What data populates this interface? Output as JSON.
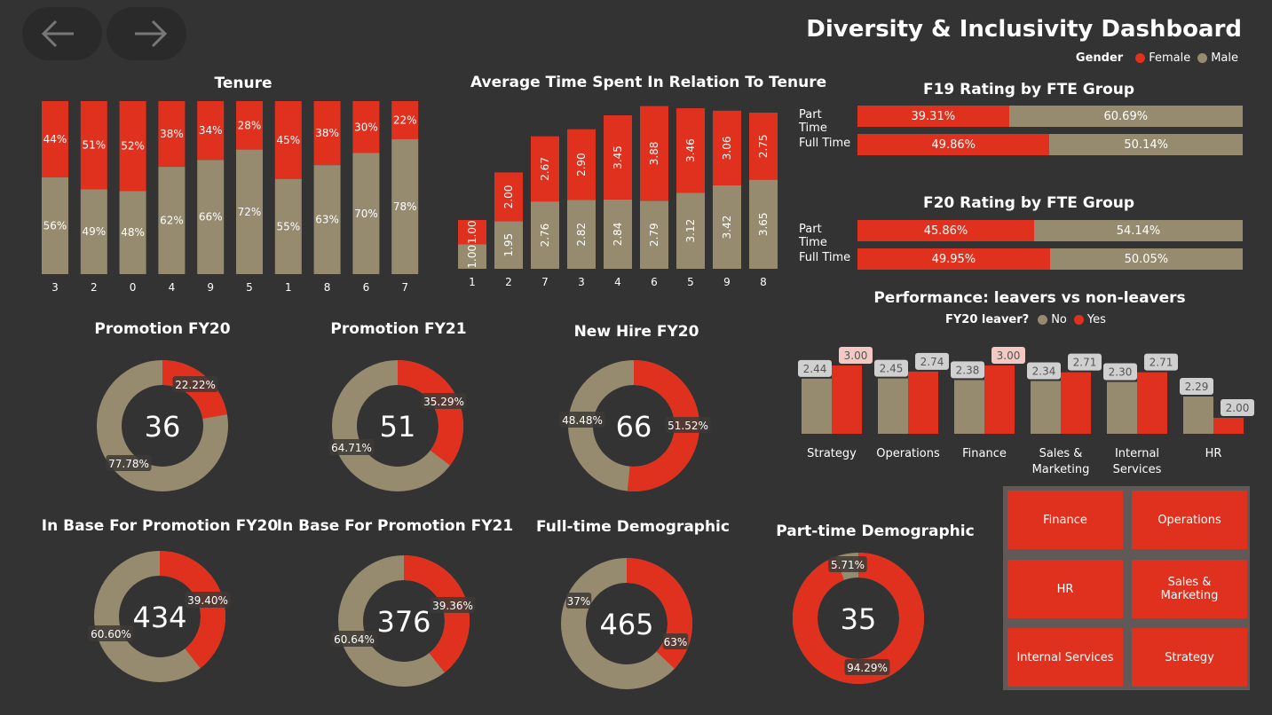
{
  "colors": {
    "female": "#e0301e",
    "male": "#968b6e",
    "bg": "#333333"
  },
  "nav": {
    "back_icon": "arrow-left-icon",
    "forward_icon": "arrow-right-icon"
  },
  "header": {
    "title": "Diversity & Inclusivity Dashboard"
  },
  "gender_legend": {
    "label": "Gender",
    "female": "Female",
    "male": "Male"
  },
  "leaver_legend": {
    "label": "FY20 leaver?",
    "no": "No",
    "yes": "Yes"
  },
  "chart_data": [
    {
      "id": "tenure",
      "type": "bar",
      "stacked": true,
      "title": "Tenure",
      "categories": [
        "3",
        "2",
        "0",
        "4",
        "9",
        "5",
        "1",
        "8",
        "6",
        "7"
      ],
      "series": [
        {
          "name": "Male",
          "values": [
            56,
            49,
            48,
            62,
            66,
            72,
            55,
            63,
            70,
            78
          ]
        },
        {
          "name": "Female",
          "values": [
            44,
            51,
            52,
            38,
            34,
            28,
            45,
            38,
            30,
            22
          ]
        }
      ],
      "unit": "%"
    },
    {
      "id": "avg_time",
      "type": "bar",
      "stacked": true,
      "title": "Average Time Spent In Relation To Tenure",
      "categories": [
        "1",
        "2",
        "7",
        "3",
        "4",
        "6",
        "5",
        "9",
        "8"
      ],
      "series": [
        {
          "name": "Male",
          "values": [
            1.0,
            1.95,
            2.76,
            2.82,
            2.84,
            2.79,
            3.12,
            3.42,
            3.65
          ]
        },
        {
          "name": "Female",
          "values": [
            1.0,
            2.0,
            2.67,
            2.9,
            3.45,
            3.88,
            3.46,
            3.06,
            2.75
          ]
        }
      ]
    },
    {
      "id": "f19",
      "type": "bar",
      "orientation": "horizontal",
      "title": "F19 Rating by FTE Group",
      "categories": [
        "Part Time",
        "Full Time"
      ],
      "series": [
        {
          "name": "Female",
          "values": [
            39.31,
            49.86
          ]
        },
        {
          "name": "Male",
          "values": [
            60.69,
            50.14
          ]
        }
      ]
    },
    {
      "id": "f20",
      "type": "bar",
      "orientation": "horizontal",
      "title": "F20 Rating by FTE Group",
      "categories": [
        "Part Time",
        "Full Time"
      ],
      "series": [
        {
          "name": "Female",
          "values": [
            45.86,
            49.95
          ]
        },
        {
          "name": "Male",
          "values": [
            54.14,
            50.05
          ]
        }
      ]
    },
    {
      "id": "performance",
      "type": "bar",
      "title": "Performance: leavers vs non-leavers",
      "categories": [
        "Strategy",
        "Operations",
        "Finance",
        "Sales & Marketing",
        "Internal Services",
        "HR"
      ],
      "series": [
        {
          "name": "No",
          "values": [
            2.44,
            2.45,
            2.38,
            2.34,
            2.3,
            2.29
          ]
        },
        {
          "name": "Yes",
          "values": [
            3.0,
            2.74,
            3.0,
            2.71,
            2.71,
            2.0
          ]
        }
      ]
    },
    {
      "id": "promo20",
      "type": "pie",
      "donut": true,
      "title": "Promotion FY20",
      "center": "36",
      "female": 22.22,
      "male": 77.78
    },
    {
      "id": "promo21",
      "type": "pie",
      "donut": true,
      "title": "Promotion FY21",
      "center": "51",
      "female": 35.29,
      "male": 64.71
    },
    {
      "id": "newhire20",
      "type": "pie",
      "donut": true,
      "title": "New Hire FY20",
      "center": "66",
      "female": 51.52,
      "male": 48.48
    },
    {
      "id": "base20",
      "type": "pie",
      "donut": true,
      "title": "In Base For Promotion FY20",
      "center": "434",
      "female": 39.4,
      "male": 60.6
    },
    {
      "id": "base21",
      "type": "pie",
      "donut": true,
      "title": "In Base For Promotion FY21",
      "center": "376",
      "female": 39.36,
      "male": 60.64
    },
    {
      "id": "fulltime",
      "type": "pie",
      "donut": true,
      "title": "Full-time Demographic",
      "center": "465",
      "female": 37,
      "male": 63
    },
    {
      "id": "parttime",
      "type": "pie",
      "donut": true,
      "title": "Part-time Demographic",
      "center": "35",
      "female": 94.29,
      "male": 5.71
    }
  ],
  "labels": {
    "tenure": {
      "female": [
        "44%",
        "51%",
        "52%",
        "38%",
        "34%",
        "28%",
        "45%",
        "38%",
        "30%",
        "22%"
      ],
      "male": [
        "56%",
        "49%",
        "48%",
        "62%",
        "66%",
        "72%",
        "55%",
        "63%",
        "70%",
        "78%"
      ]
    },
    "avg_time": {
      "female": [
        "1.00",
        "2.00",
        "2.67",
        "2.90",
        "3.45",
        "3.88",
        "3.46",
        "3.06",
        "2.75"
      ],
      "male": [
        "1.00",
        "1.95",
        "2.76",
        "2.82",
        "2.84",
        "2.79",
        "3.12",
        "3.42",
        "3.65"
      ]
    },
    "f19": {
      "female": [
        "39.31%",
        "49.86%"
      ],
      "male": [
        "60.69%",
        "50.14%"
      ]
    },
    "f20": {
      "female": [
        "45.86%",
        "49.95%"
      ],
      "male": [
        "54.14%",
        "50.05%"
      ]
    },
    "performance": {
      "no": [
        "2.44",
        "2.45",
        "2.38",
        "2.34",
        "2.30",
        "2.29"
      ],
      "yes": [
        "3.00",
        "2.74",
        "3.00",
        "2.71",
        "2.71",
        "2.00"
      ],
      "cats": [
        [
          "Strategy"
        ],
        [
          "Operations"
        ],
        [
          "Finance"
        ],
        [
          "Sales &",
          "Marketing"
        ],
        [
          "Internal",
          "Services"
        ],
        [
          "HR"
        ]
      ]
    },
    "donuts": {
      "promo20": {
        "female": "22.22%",
        "male": "77.78%"
      },
      "promo21": {
        "female": "35.29%",
        "male": "64.71%"
      },
      "newhire20": {
        "female": "51.52%",
        "male": "48.48%"
      },
      "base20": {
        "female": "39.40%",
        "male": "60.60%"
      },
      "base21": {
        "female": "39.36%",
        "male": "60.64%"
      },
      "fulltime": {
        "female": "37%",
        "male": "63%"
      },
      "parttime": {
        "female": "94.29%",
        "male": "5.71%"
      }
    }
  },
  "slicer": {
    "tiles": [
      "Finance",
      "Operations",
      "HR",
      "Sales & Marketing",
      "Internal Services",
      "Strategy"
    ]
  }
}
